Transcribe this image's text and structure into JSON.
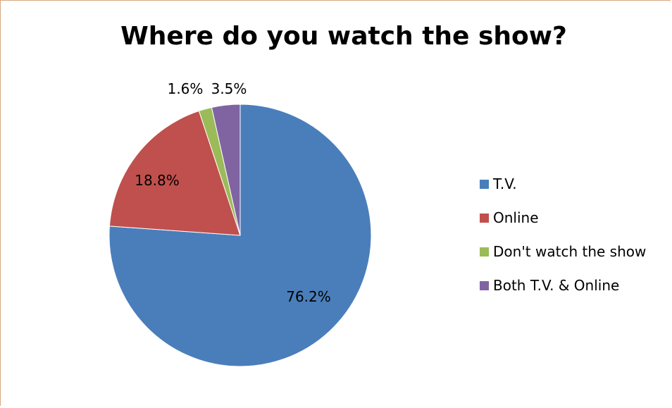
{
  "chart_data": {
    "type": "pie",
    "title": "Where do you watch the show?",
    "categories": [
      "T.V.",
      "Online",
      "Don't watch the show",
      "Both T.V. & Online"
    ],
    "values": [
      76.2,
      18.8,
      1.6,
      3.5
    ],
    "data_labels": [
      "76.2%",
      "18.8%",
      "1.6%",
      "3.5%"
    ],
    "colors": [
      "#4a7ebb",
      "#c0504d",
      "#9bbb59",
      "#8064a2"
    ],
    "legend_position": "right"
  }
}
